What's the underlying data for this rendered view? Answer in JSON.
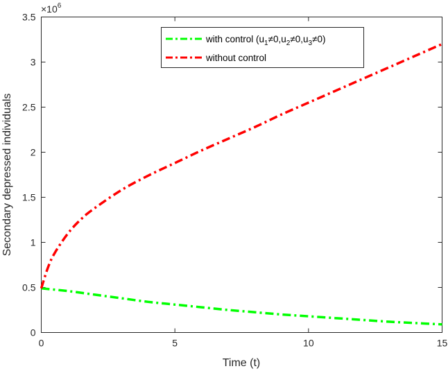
{
  "chart_data": {
    "type": "line",
    "xlabel": "Time (t)",
    "ylabel": "Secondary depressed individuals",
    "xlim": [
      0,
      15
    ],
    "ylim": [
      0,
      3.5
    ],
    "y_scale_exponent": "×10⁶",
    "x_ticks": [
      "0",
      "5",
      "10",
      "15"
    ],
    "y_ticks": [
      "0",
      "0.5",
      "1",
      "1.5",
      "2",
      "2.5",
      "3",
      "3.5"
    ],
    "grid": false,
    "legend_position": "top-right",
    "series": [
      {
        "name": "with control (u1≠0,u2≠0,u3≠0)",
        "color": "#00ff00",
        "style": "dash-dot",
        "x": [
          0,
          1,
          2,
          3,
          4,
          5,
          6,
          7,
          8,
          9,
          10,
          11,
          12,
          13,
          14,
          15
        ],
        "y": [
          0.49,
          0.46,
          0.42,
          0.38,
          0.34,
          0.31,
          0.28,
          0.25,
          0.225,
          0.2,
          0.18,
          0.16,
          0.14,
          0.12,
          0.105,
          0.09
        ]
      },
      {
        "name": "without control",
        "color": "#ff0000",
        "style": "dash-dot",
        "x": [
          0,
          0.25,
          0.5,
          1,
          1.5,
          2,
          3,
          4,
          5,
          6,
          7,
          8,
          9,
          10,
          11,
          12,
          13,
          14,
          15
        ],
        "y": [
          0.49,
          0.72,
          0.88,
          1.1,
          1.26,
          1.38,
          1.58,
          1.74,
          1.88,
          2.02,
          2.15,
          2.28,
          2.42,
          2.55,
          2.68,
          2.81,
          2.94,
          3.07,
          3.2
        ]
      }
    ]
  },
  "legend": {
    "with_control_prefix": "with control (u",
    "with_control_sub1": "1",
    "with_control_mid1": "≠0,u",
    "with_control_sub2": "2",
    "with_control_mid2": "≠0,u",
    "with_control_sub3": "3",
    "with_control_suffix": "≠0)",
    "without_control": "without control"
  },
  "exponent": {
    "base": "×10",
    "power": "6"
  }
}
